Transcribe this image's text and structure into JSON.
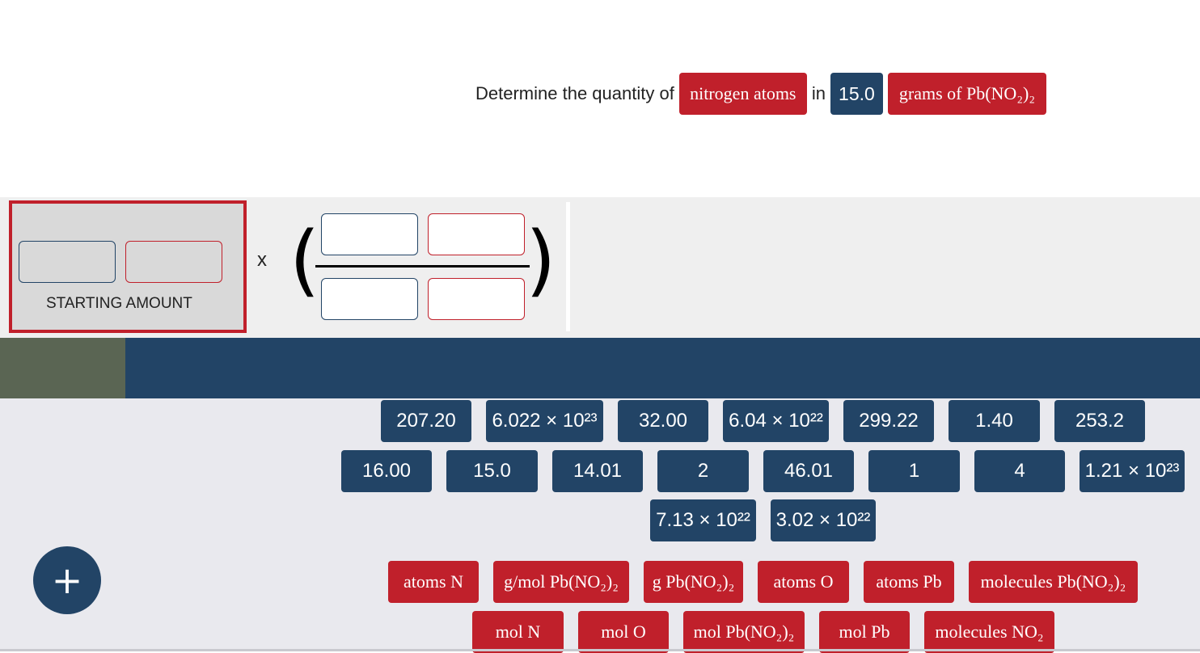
{
  "question": {
    "prefix": "Determine the quantity of",
    "target_unit": "nitrogen atoms",
    "connector": "in",
    "amount": "15.0",
    "given_unit": "grams of Pb(NO₂)₂"
  },
  "workspace": {
    "starting_amount_label": "STARTING AMOUNT",
    "operator": "x",
    "paren_left": "(",
    "paren_right": ")"
  },
  "add_button": {
    "icon": "plus-icon",
    "glyph": "+"
  },
  "number_tiles": [
    "207.20",
    "6.022 × 10²³",
    "32.00",
    "6.04 × 10²²",
    "299.22",
    "1.40",
    "253.2",
    "16.00",
    "15.0",
    "14.01",
    "2",
    "46.01",
    "1",
    "4",
    "1.21 × 10²³",
    "7.13 × 10²²",
    "3.02 × 10²²"
  ],
  "unit_tiles": [
    "atoms N",
    "g/mol Pb(NO₂)₂",
    "g Pb(NO₂)₂",
    "atoms O",
    "atoms Pb",
    "molecules Pb(NO₂)₂",
    "mol N",
    "mol O",
    "mol Pb(NO₂)₂",
    "mol Pb",
    "molecules NO₂"
  ],
  "colors": {
    "unit_red": "#c0202b",
    "value_blue": "#224466",
    "answer_swatch": "#5a6553"
  }
}
